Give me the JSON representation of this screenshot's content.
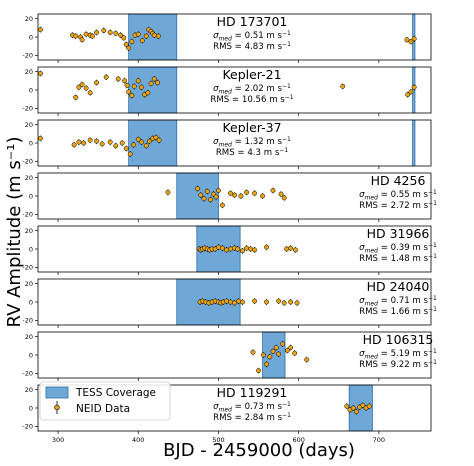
{
  "chart_data": {
    "type": "scatter",
    "xlabel": "BJD - 2459000 (days)",
    "ylabel": "RV Amplitude (m s⁻¹)",
    "xlim": [
      275,
      765
    ],
    "x_ticks": [
      300,
      400,
      500,
      600,
      700
    ],
    "y_ticks": [
      20,
      0,
      -20
    ],
    "ylim": [
      -25,
      25
    ],
    "colors": {
      "tess_fill": "#6fa8d6",
      "tess_edge": "#2f6fa6",
      "marker_fill": "#e8a317",
      "marker_edge": "#000000"
    },
    "legend": {
      "placement": "lower-left",
      "entries": [
        {
          "label": "TESS Coverage",
          "kind": "tess"
        },
        {
          "label": "NEID Data",
          "kind": "marker"
        }
      ]
    },
    "panels": [
      {
        "name": "HD 173701",
        "sigma_label": "σ",
        "sigma_sub": "med",
        "sigma_value": " = 0.51 m s",
        "rms": "RMS = 4.83 m s",
        "text_align": "center",
        "tess": [
          [
            388,
            448
          ],
          [
            742,
            745
          ]
        ],
        "points": [
          [
            278,
            8
          ],
          [
            318,
            2
          ],
          [
            322,
            1
          ],
          [
            328,
            0
          ],
          [
            330,
            -3
          ],
          [
            335,
            3
          ],
          [
            340,
            2
          ],
          [
            343,
            1
          ],
          [
            348,
            5
          ],
          [
            357,
            7
          ],
          [
            365,
            5
          ],
          [
            372,
            4
          ],
          [
            378,
            2
          ],
          [
            382,
            -1
          ],
          [
            385,
            -8
          ],
          [
            388,
            -12
          ],
          [
            392,
            -5
          ],
          [
            396,
            2
          ],
          [
            400,
            3
          ],
          [
            405,
            -4
          ],
          [
            410,
            1
          ],
          [
            413,
            8
          ],
          [
            416,
            6
          ],
          [
            418,
            4
          ],
          [
            420,
            2
          ],
          [
            425,
            1
          ],
          [
            735,
            -3
          ],
          [
            740,
            -5
          ],
          [
            744,
            -2
          ]
        ]
      },
      {
        "name": "Kepler-21",
        "sigma_label": "σ",
        "sigma_sub": "med",
        "sigma_value": " = 2.02 m s",
        "rms": "RMS = 10.56 m s",
        "text_align": "center",
        "tess": [
          [
            388,
            448
          ],
          [
            742,
            745
          ]
        ],
        "points": [
          [
            278,
            18
          ],
          [
            322,
            -8
          ],
          [
            326,
            3
          ],
          [
            330,
            6
          ],
          [
            335,
            2
          ],
          [
            340,
            -3
          ],
          [
            348,
            8
          ],
          [
            360,
            14
          ],
          [
            375,
            12
          ],
          [
            383,
            10
          ],
          [
            386,
            5
          ],
          [
            388,
            -2
          ],
          [
            392,
            -6
          ],
          [
            395,
            4
          ],
          [
            400,
            10
          ],
          [
            404,
            3
          ],
          [
            408,
            -5
          ],
          [
            412,
            -3
          ],
          [
            416,
            7
          ],
          [
            420,
            12
          ],
          [
            424,
            8
          ],
          [
            655,
            4
          ],
          [
            736,
            -5
          ],
          [
            740,
            -2
          ],
          [
            744,
            3
          ]
        ]
      },
      {
        "name": "Kepler-37",
        "sigma_label": "σ",
        "sigma_sub": "med",
        "sigma_value": " = 1.32 m s",
        "rms": "RMS = 4.3 m s",
        "text_align": "center",
        "tess": [
          [
            388,
            448
          ],
          [
            742,
            745
          ]
        ],
        "points": [
          [
            278,
            5
          ],
          [
            320,
            -2
          ],
          [
            326,
            1
          ],
          [
            332,
            0
          ],
          [
            340,
            3
          ],
          [
            348,
            2
          ],
          [
            355,
            -1
          ],
          [
            365,
            1
          ],
          [
            372,
            -3
          ],
          [
            380,
            0
          ],
          [
            385,
            -6
          ],
          [
            390,
            -12
          ],
          [
            394,
            -2
          ],
          [
            400,
            4
          ],
          [
            404,
            1
          ],
          [
            410,
            -3
          ],
          [
            414,
            2
          ],
          [
            418,
            5
          ],
          [
            422,
            6
          ],
          [
            426,
            3
          ]
        ]
      },
      {
        "name": "HD 4256",
        "sigma_label": "σ",
        "sigma_sub": "med",
        "sigma_value": " = 0.55 m s",
        "rms": "RMS = 2.72 m s",
        "text_align": "left",
        "tess": [
          [
            448,
            500
          ]
        ],
        "points": [
          [
            437,
            4
          ],
          [
            474,
            8
          ],
          [
            478,
            1
          ],
          [
            482,
            -3
          ],
          [
            486,
            5
          ],
          [
            490,
            -4
          ],
          [
            494,
            2
          ],
          [
            497,
            -1
          ],
          [
            500,
            6
          ],
          [
            505,
            -10
          ],
          [
            515,
            3
          ],
          [
            520,
            1
          ],
          [
            528,
            0
          ],
          [
            535,
            4
          ],
          [
            545,
            3
          ],
          [
            555,
            0
          ],
          [
            568,
            6
          ],
          [
            578,
            2
          ],
          [
            582,
            -2
          ]
        ]
      },
      {
        "name": "HD 31966",
        "sigma_label": "σ",
        "sigma_sub": "med",
        "sigma_value": " = 0.39 m s",
        "rms": "RMS = 1.48 m s",
        "text_align": "left",
        "tess": [
          [
            473,
            527
          ]
        ],
        "points": [
          [
            476,
            0
          ],
          [
            478,
            -1
          ],
          [
            480,
            0
          ],
          [
            483,
            1
          ],
          [
            486,
            0
          ],
          [
            489,
            -1
          ],
          [
            492,
            0
          ],
          [
            496,
            0
          ],
          [
            500,
            2
          ],
          [
            505,
            1
          ],
          [
            510,
            -1
          ],
          [
            515,
            0
          ],
          [
            520,
            1
          ],
          [
            524,
            0
          ],
          [
            530,
            -2
          ],
          [
            535,
            1
          ],
          [
            540,
            0
          ],
          [
            545,
            -1
          ],
          [
            560,
            2
          ],
          [
            585,
            0
          ],
          [
            590,
            1
          ],
          [
            596,
            -1
          ]
        ]
      },
      {
        "name": "HD 24040",
        "sigma_label": "σ",
        "sigma_sub": "med",
        "sigma_value": " = 0.71 m s",
        "rms": "RMS = 1.66 m s",
        "text_align": "left",
        "tess": [
          [
            448,
            527
          ]
        ],
        "points": [
          [
            477,
            0
          ],
          [
            480,
            1
          ],
          [
            484,
            0
          ],
          [
            488,
            -1
          ],
          [
            492,
            0
          ],
          [
            496,
            1
          ],
          [
            500,
            0
          ],
          [
            503,
            -1
          ],
          [
            506,
            0
          ],
          [
            510,
            1
          ],
          [
            515,
            0
          ],
          [
            520,
            -1
          ],
          [
            525,
            1
          ],
          [
            530,
            0
          ],
          [
            545,
            1
          ],
          [
            560,
            0
          ],
          [
            575,
            1
          ],
          [
            582,
            -1
          ],
          [
            590,
            0
          ],
          [
            598,
            -1
          ]
        ]
      },
      {
        "name": "HD 106315",
        "sigma_label": "σ",
        "sigma_sub": "med",
        "sigma_value": " = 5.19 m s",
        "rms": "RMS = 9.22 m s",
        "text_align": "left",
        "tess": [
          [
            555,
            583
          ]
        ],
        "points": [
          [
            543,
            3
          ],
          [
            550,
            -17
          ],
          [
            556,
            0
          ],
          [
            560,
            -10
          ],
          [
            564,
            -2
          ],
          [
            568,
            4
          ],
          [
            572,
            8
          ],
          [
            575,
            1
          ],
          [
            580,
            12
          ],
          [
            586,
            5
          ],
          [
            590,
            8
          ],
          [
            595,
            2
          ],
          [
            610,
            -5
          ]
        ]
      },
      {
        "name": "HD 119291",
        "sigma_label": "σ",
        "sigma_sub": "med",
        "sigma_value": " = 0.73 m s",
        "rms": "RMS = 2.84 m s",
        "text_align": "center",
        "tess": [
          [
            663,
            692
          ]
        ],
        "points": [
          [
            660,
            2
          ],
          [
            664,
            -2
          ],
          [
            668,
            0
          ],
          [
            672,
            -4
          ],
          [
            676,
            1
          ],
          [
            680,
            3
          ],
          [
            684,
            0
          ],
          [
            688,
            2
          ]
        ]
      }
    ]
  }
}
